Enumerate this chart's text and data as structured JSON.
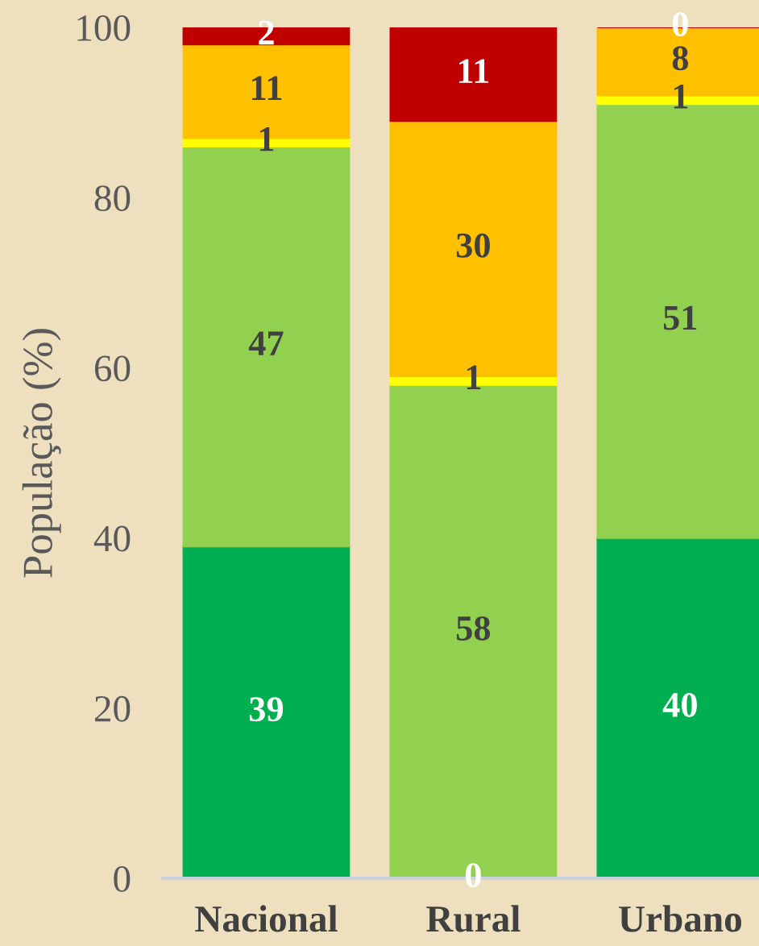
{
  "chart_data": {
    "type": "bar",
    "stacked": true,
    "ylabel": "População (%)",
    "categories": [
      "Nacional",
      "Rural",
      "Urbano"
    ],
    "series": [
      {
        "color": "#00b050",
        "values": [
          39,
          0,
          40
        ]
      },
      {
        "color": "#92d050",
        "values": [
          47,
          58,
          51
        ]
      },
      {
        "color": "#ffff00",
        "values": [
          1,
          1,
          1
        ]
      },
      {
        "color": "#ffc000",
        "values": [
          11,
          30,
          8
        ]
      },
      {
        "color": "#c00000",
        "values": [
          2,
          11,
          0
        ]
      }
    ],
    "ylim": [
      0,
      100
    ],
    "yticks": [
      0,
      20,
      40,
      60,
      80,
      100
    ],
    "grid": false,
    "legend": false,
    "data_labels": true
  }
}
